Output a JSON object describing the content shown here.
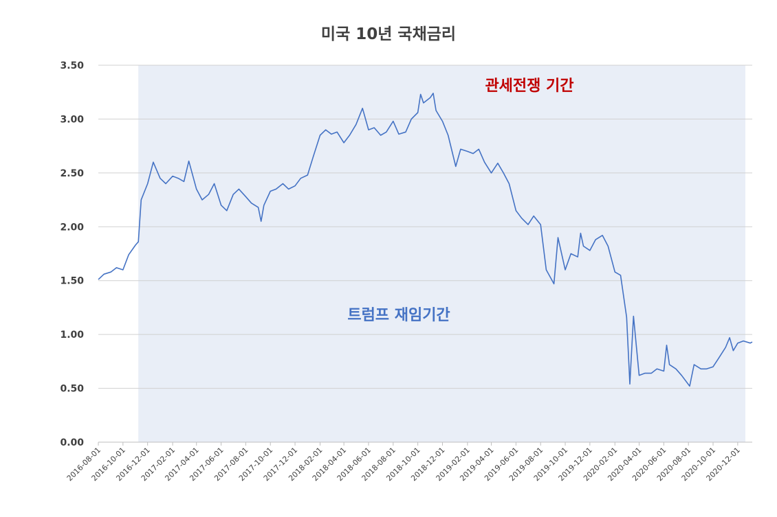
{
  "chart_data": {
    "type": "line",
    "title": "미국 10년 국채금리",
    "xlabel": "",
    "ylabel": "",
    "ylim": [
      0,
      3.5
    ],
    "xlim": [
      "2016-08-01",
      "2021-01-06"
    ],
    "grid": "horizontal",
    "y_tick_labels": [
      "0.00",
      "0.50",
      "1.00",
      "1.50",
      "2.00",
      "2.50",
      "3.00",
      "3.50"
    ],
    "x_tick_labels": [
      "2016-08-01",
      "2016-10-01",
      "2016-12-01",
      "2017-02-01",
      "2017-04-01",
      "2017-06-01",
      "2017-08-01",
      "2017-10-01",
      "2017-12-01",
      "2018-02-01",
      "2018-04-01",
      "2018-06-01",
      "2018-08-01",
      "2018-10-01",
      "2018-12-01",
      "2019-02-01",
      "2019-04-01",
      "2019-06-01",
      "2019-08-01",
      "2019-10-01",
      "2019-12-01",
      "2020-02-01",
      "2020-04-01",
      "2020-06-01",
      "2020-08-01",
      "2020-10-01",
      "2020-12-01"
    ],
    "series": [
      {
        "color": "#4472c4",
        "x": [
          "2016-08-01",
          "2016-08-15",
          "2016-09-01",
          "2016-09-15",
          "2016-10-01",
          "2016-10-15",
          "2016-11-01",
          "2016-11-08",
          "2016-11-15",
          "2016-12-01",
          "2016-12-15",
          "2017-01-01",
          "2017-01-15",
          "2017-02-01",
          "2017-02-15",
          "2017-03-01",
          "2017-03-13",
          "2017-04-01",
          "2017-04-15",
          "2017-05-01",
          "2017-05-15",
          "2017-06-01",
          "2017-06-15",
          "2017-07-01",
          "2017-07-15",
          "2017-08-01",
          "2017-08-15",
          "2017-09-01",
          "2017-09-08",
          "2017-09-15",
          "2017-10-01",
          "2017-10-15",
          "2017-11-01",
          "2017-11-15",
          "2017-12-01",
          "2017-12-15",
          "2018-01-01",
          "2018-01-15",
          "2018-02-01",
          "2018-02-15",
          "2018-03-01",
          "2018-03-15",
          "2018-04-01",
          "2018-04-15",
          "2018-05-01",
          "2018-05-17",
          "2018-06-01",
          "2018-06-15",
          "2018-07-01",
          "2018-07-15",
          "2018-08-01",
          "2018-08-15",
          "2018-09-01",
          "2018-09-15",
          "2018-10-01",
          "2018-10-08",
          "2018-10-15",
          "2018-11-01",
          "2018-11-08",
          "2018-11-15",
          "2018-12-01",
          "2018-12-15",
          "2019-01-03",
          "2019-01-15",
          "2019-02-01",
          "2019-02-15",
          "2019-03-01",
          "2019-03-15",
          "2019-04-01",
          "2019-04-17",
          "2019-05-01",
          "2019-05-15",
          "2019-06-01",
          "2019-06-15",
          "2019-07-01",
          "2019-07-15",
          "2019-08-01",
          "2019-08-15",
          "2019-09-03",
          "2019-09-13",
          "2019-10-01",
          "2019-10-15",
          "2019-11-01",
          "2019-11-08",
          "2019-11-15",
          "2019-12-01",
          "2019-12-15",
          "2020-01-01",
          "2020-01-15",
          "2020-02-01",
          "2020-02-15",
          "2020-03-01",
          "2020-03-09",
          "2020-03-18",
          "2020-04-01",
          "2020-04-15",
          "2020-05-01",
          "2020-05-15",
          "2020-06-01",
          "2020-06-08",
          "2020-06-15",
          "2020-07-01",
          "2020-07-15",
          "2020-08-04",
          "2020-08-15",
          "2020-09-01",
          "2020-09-15",
          "2020-10-01",
          "2020-10-15",
          "2020-11-01",
          "2020-11-11",
          "2020-11-20",
          "2020-12-01",
          "2020-12-15",
          "2021-01-01",
          "2021-01-06"
        ],
        "values": [
          1.51,
          1.56,
          1.58,
          1.62,
          1.6,
          1.74,
          1.83,
          1.86,
          2.25,
          2.4,
          2.6,
          2.45,
          2.4,
          2.47,
          2.45,
          2.42,
          2.61,
          2.35,
          2.25,
          2.3,
          2.4,
          2.2,
          2.15,
          2.3,
          2.35,
          2.28,
          2.22,
          2.18,
          2.05,
          2.2,
          2.33,
          2.35,
          2.4,
          2.35,
          2.38,
          2.45,
          2.48,
          2.65,
          2.85,
          2.9,
          2.86,
          2.88,
          2.78,
          2.85,
          2.95,
          3.1,
          2.9,
          2.92,
          2.85,
          2.88,
          2.98,
          2.86,
          2.88,
          3.0,
          3.06,
          3.23,
          3.15,
          3.2,
          3.24,
          3.08,
          2.98,
          2.85,
          2.56,
          2.72,
          2.7,
          2.68,
          2.72,
          2.6,
          2.5,
          2.59,
          2.5,
          2.4,
          2.15,
          2.08,
          2.02,
          2.1,
          2.02,
          1.6,
          1.47,
          1.9,
          1.6,
          1.75,
          1.72,
          1.94,
          1.82,
          1.78,
          1.88,
          1.92,
          1.82,
          1.58,
          1.55,
          1.16,
          0.54,
          1.17,
          0.62,
          0.64,
          0.64,
          0.68,
          0.66,
          0.9,
          0.72,
          0.68,
          0.62,
          0.52,
          0.72,
          0.68,
          0.68,
          0.7,
          0.78,
          0.88,
          0.97,
          0.85,
          0.92,
          0.94,
          0.92,
          0.93
        ]
      }
    ],
    "annotations": [
      {
        "text": "관세전쟁 기간",
        "color": "#c00000"
      },
      {
        "text": "트럼프 재임기간",
        "color": "#4472c4"
      }
    ],
    "shaded_period": {
      "start": "2016-11-08",
      "end": "2020-12-20",
      "color": "#e9eef7"
    }
  }
}
